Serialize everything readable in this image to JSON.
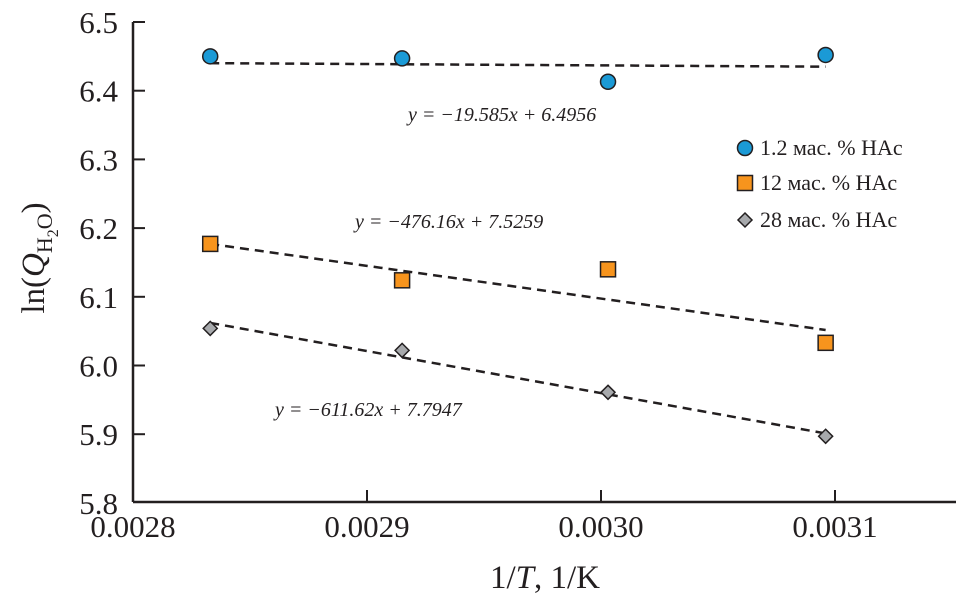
{
  "chart_data": {
    "type": "scatter",
    "xlabel_parts": [
      "1/",
      "T",
      ", 1/K"
    ],
    "ylabel_parts": [
      "ln(",
      "Q",
      "H",
      "2",
      "O",
      ")"
    ],
    "xlim": [
      0.0028,
      0.00315
    ],
    "ylim": [
      5.8,
      6.5
    ],
    "xticks": [
      "0.0028",
      "0.0029",
      "0.0030",
      "0.0031"
    ],
    "xtick_values": [
      0.0028,
      0.0029,
      0.003,
      0.0031
    ],
    "yticks": [
      "6.5",
      "6.4",
      "6.3",
      "6.2",
      "6.1",
      "6.0",
      "5.9",
      "5.8"
    ],
    "ytick_values": [
      6.5,
      6.4,
      6.3,
      6.2,
      6.1,
      6.0,
      5.9,
      5.8
    ],
    "grid": false,
    "legend_position": "right",
    "x": [
      0.002833,
      0.002915,
      0.003003,
      0.003096
    ],
    "series": [
      {
        "name": "1.2 мас. % HAc",
        "marker": "circle",
        "color": "#1b9ad6",
        "values": [
          6.45,
          6.447,
          6.413,
          6.452
        ],
        "fit": {
          "slope": -19.585,
          "intercept": 6.4956,
          "label": "y = −19.585x + 6.4956"
        }
      },
      {
        "name": "12 мас. % HAc",
        "marker": "square",
        "color": "#f7941d",
        "values": [
          6.177,
          6.124,
          6.14,
          6.033
        ],
        "fit": {
          "slope": -476.16,
          "intercept": 7.5259,
          "label": "y = −476.16x + 7.5259"
        }
      },
      {
        "name": "28 мас. % HAc",
        "marker": "diamond",
        "color": "#a7a9ac",
        "values": [
          6.054,
          6.022,
          5.961,
          5.897
        ],
        "fit": {
          "slope": -611.62,
          "intercept": 7.7947,
          "label": "y = −611.62x + 7.7947"
        }
      }
    ]
  }
}
